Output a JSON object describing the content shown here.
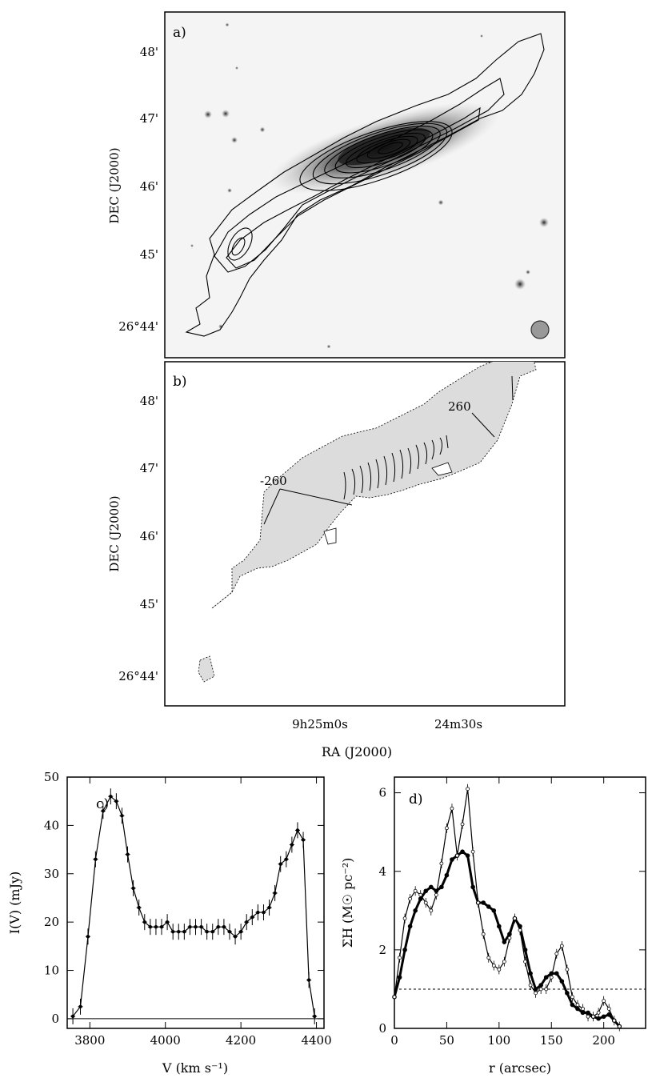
{
  "panels": {
    "a": {
      "label": "a)",
      "ylabel": "DEC (J2000)",
      "yticks": [
        "48'",
        "47'",
        "46'",
        "45'",
        "26°44'"
      ]
    },
    "b": {
      "label": "b)",
      "ylabel": "DEC (J2000)",
      "yticks": [
        "48'",
        "47'",
        "46'",
        "45'",
        "26°44'"
      ],
      "annotations": [
        "260",
        "-260"
      ],
      "xticks": [
        "9h25m0s",
        "24m30s"
      ],
      "xlabel": "RA (J2000)"
    }
  },
  "chart_data": [
    {
      "type": "line",
      "panel_label": "c)",
      "xlabel": "V (km s⁻¹)",
      "ylabel": "I(V) (mJy)",
      "xlim": [
        3740,
        4420
      ],
      "ylim": [
        -2,
        50
      ],
      "xticks": [
        "3800",
        "4000",
        "4200",
        "4400"
      ],
      "yticks": [
        "0",
        "10",
        "20",
        "30",
        "40",
        "50"
      ],
      "x": [
        3755,
        3775,
        3795,
        3815,
        3835,
        3855,
        3870,
        3885,
        3900,
        3915,
        3930,
        3945,
        3960,
        3975,
        3990,
        4005,
        4020,
        4035,
        4050,
        4065,
        4080,
        4095,
        4110,
        4125,
        4140,
        4155,
        4170,
        4185,
        4200,
        4215,
        4230,
        4245,
        4260,
        4275,
        4290,
        4305,
        4320,
        4335,
        4350,
        4365,
        4380,
        4395
      ],
      "y": [
        0.5,
        2.5,
        17,
        33,
        43,
        46,
        45,
        42,
        34,
        27,
        23,
        20,
        19,
        19,
        19,
        20,
        18,
        18,
        18,
        19,
        19,
        19,
        18,
        18,
        19,
        19,
        18,
        17,
        18,
        20,
        21,
        22,
        22,
        23,
        26,
        32,
        33,
        36,
        39,
        37,
        8,
        0.5
      ],
      "baseline": 0
    },
    {
      "type": "line",
      "panel_label": "d)",
      "xlabel": "r (arcsec)",
      "ylabel": "ΣH (M☉ pc⁻²)",
      "xlim": [
        0,
        240
      ],
      "ylim": [
        0,
        6.4
      ],
      "xticks": [
        "0",
        "50",
        "100",
        "150",
        "200"
      ],
      "yticks": [
        "0",
        "2",
        "4",
        "6"
      ],
      "threshold": 1,
      "series": [
        {
          "x": [
            0,
            5,
            10,
            15,
            20,
            25,
            30,
            35,
            40,
            45,
            50,
            55,
            60,
            65,
            70,
            75,
            80,
            85,
            90,
            95,
            100,
            105,
            110,
            115,
            120,
            125,
            130,
            135,
            140,
            145,
            150,
            155,
            160,
            165,
            170,
            175,
            180,
            185,
            190,
            195,
            200,
            205,
            210,
            215
          ],
          "y": [
            0.8,
            1.3,
            2.0,
            2.6,
            3.0,
            3.3,
            3.5,
            3.6,
            3.5,
            3.6,
            3.9,
            4.3,
            4.4,
            4.5,
            4.4,
            3.6,
            3.2,
            3.2,
            3.1,
            3.0,
            2.6,
            2.2,
            2.4,
            2.8,
            2.6,
            2.0,
            1.4,
            1.0,
            1.1,
            1.3,
            1.4,
            1.4,
            1.2,
            0.9,
            0.6,
            0.5,
            0.4,
            0.4,
            0.3,
            0.25,
            0.3,
            0.35,
            0.2,
            0.05
          ]
        },
        {
          "x": [
            0,
            5,
            10,
            15,
            20,
            25,
            30,
            35,
            40,
            45,
            50,
            55,
            60,
            65,
            70,
            75,
            80,
            85,
            90,
            95,
            100,
            105,
            110,
            115,
            120,
            125,
            130,
            135,
            140,
            145,
            150,
            155,
            160,
            165,
            170,
            175,
            180,
            185,
            190,
            195,
            200,
            205,
            210,
            215
          ],
          "y": [
            0.8,
            1.8,
            2.8,
            3.3,
            3.5,
            3.4,
            3.2,
            3.0,
            3.4,
            4.2,
            5.1,
            5.6,
            4.4,
            5.2,
            6.1,
            4.5,
            3.2,
            2.4,
            1.8,
            1.6,
            1.5,
            1.7,
            2.3,
            2.8,
            2.5,
            1.7,
            1.1,
            0.9,
            1.0,
            1.0,
            1.3,
            1.9,
            2.1,
            1.5,
            0.8,
            0.6,
            0.5,
            0.3,
            0.3,
            0.4,
            0.7,
            0.5,
            0.2,
            0.05
          ]
        }
      ]
    }
  ]
}
